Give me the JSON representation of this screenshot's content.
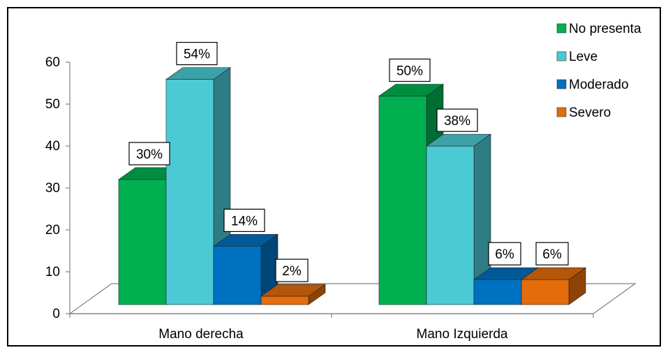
{
  "chart_data": {
    "type": "bar",
    "categories": [
      "Mano derecha",
      "Mano Izquierda"
    ],
    "series": [
      {
        "name": "No presenta",
        "values": [
          30,
          50
        ],
        "labels": [
          "30%",
          "50%"
        ],
        "color": "#00b050"
      },
      {
        "name": "Leve",
        "values": [
          54,
          38
        ],
        "labels": [
          "54%",
          "38%"
        ],
        "color": "#4bcad5"
      },
      {
        "name": "Moderado",
        "values": [
          14,
          6
        ],
        "labels": [
          "14%",
          "6%"
        ],
        "color": "#0070c0"
      },
      {
        "name": "Severo",
        "values": [
          2,
          6
        ],
        "labels": [
          "2%",
          "6%"
        ],
        "color": "#e46c0a"
      }
    ],
    "y_ticks": [
      "0",
      "10",
      "20",
      "30",
      "40",
      "50",
      "60"
    ],
    "ylim": [
      0,
      60
    ],
    "legend_position": "top-right",
    "grid": false,
    "three_d": true
  }
}
